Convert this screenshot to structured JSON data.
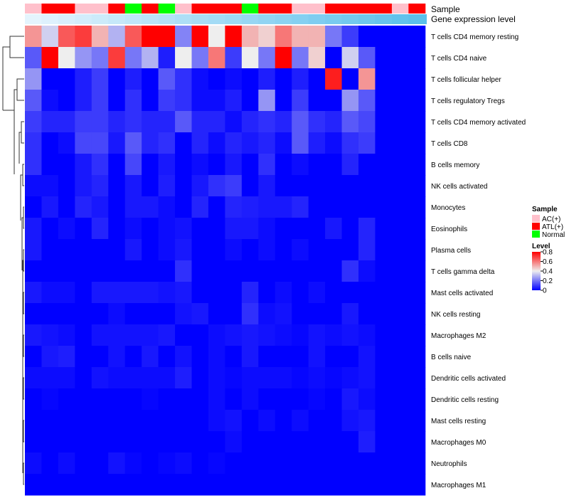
{
  "chart_data": {
    "type": "heatmap",
    "title": "",
    "annotation_tracks": [
      {
        "label": "Sample"
      },
      {
        "label": "Gene expression level"
      }
    ],
    "sample_groups": [
      "AC(+)",
      "ATL(+)",
      "ATL(+)",
      "AC(+)",
      "AC(+)",
      "ATL(+)",
      "Normal",
      "ATL(+)",
      "Normal",
      "AC(+)",
      "ATL(+)",
      "ATL(+)",
      "ATL(+)",
      "Normal",
      "ATL(+)",
      "ATL(+)",
      "AC(+)",
      "AC(+)",
      "ATL(+)",
      "ATL(+)",
      "ATL(+)",
      "ATL(+)",
      "AC(+)",
      "ATL(+)"
    ],
    "expression_levels": [
      0.08,
      0.12,
      0.16,
      0.2,
      0.24,
      0.28,
      0.32,
      0.36,
      0.4,
      0.44,
      0.48,
      0.52,
      0.56,
      0.6,
      0.64,
      0.68,
      0.72,
      0.76,
      0.8,
      0.84,
      0.88,
      0.92,
      0.96,
      1.0
    ],
    "rows": [
      "T cells CD4 memory resting",
      "T cells CD4 naive",
      "T cells follicular helper",
      "T cells regulatory  Tregs",
      "T cells CD4 memory activated",
      "T cells CD8",
      "B cells memory",
      "NK cells activated",
      "Monocytes",
      "Eosinophils",
      "Plasma cells",
      "T cells gamma delta",
      "Mast cells activated",
      "NK cells resting",
      "Macrophages M2",
      "B cells naive",
      "Dendritic cells activated",
      "Dendritic cells resting",
      "Mast cells resting",
      "Macrophages M0",
      "Neutrophils",
      "Macrophages M1"
    ],
    "values": [
      [
        0.55,
        0.35,
        0.65,
        0.7,
        0.5,
        0.3,
        0.65,
        0.8,
        0.8,
        0.22,
        0.8,
        0.4,
        0.8,
        0.5,
        0.45,
        0.6,
        0.5,
        0.5,
        0.2,
        0.1,
        0.0,
        0.0,
        0.0,
        0.0
      ],
      [
        0.15,
        0.8,
        0.4,
        0.25,
        0.2,
        0.7,
        0.2,
        0.3,
        0.05,
        0.4,
        0.2,
        0.6,
        0.1,
        0.4,
        0.2,
        0.8,
        0.2,
        0.45,
        0.0,
        0.35,
        0.15,
        0.0,
        0.0,
        0.0
      ],
      [
        0.25,
        0.0,
        0.0,
        0.05,
        0.1,
        0.0,
        0.05,
        0.0,
        0.15,
        0.08,
        0.02,
        0.0,
        0.02,
        0.0,
        0.05,
        0.0,
        0.05,
        0.0,
        0.75,
        0.0,
        0.55,
        0.0,
        0.0,
        0.0
      ],
      [
        0.15,
        0.02,
        0.0,
        0.05,
        0.1,
        0.0,
        0.08,
        0.0,
        0.1,
        0.08,
        0.02,
        0.02,
        0.05,
        0.0,
        0.25,
        0.0,
        0.1,
        0.0,
        0.0,
        0.25,
        0.15,
        0.0,
        0.0,
        0.0
      ],
      [
        0.1,
        0.06,
        0.06,
        0.1,
        0.1,
        0.06,
        0.08,
        0.06,
        0.06,
        0.15,
        0.06,
        0.06,
        0.02,
        0.06,
        0.08,
        0.06,
        0.15,
        0.08,
        0.06,
        0.15,
        0.12,
        0.0,
        0.0,
        0.0
      ],
      [
        0.08,
        0.0,
        0.02,
        0.12,
        0.12,
        0.04,
        0.15,
        0.06,
        0.08,
        0.0,
        0.06,
        0.02,
        0.06,
        0.04,
        0.06,
        0.02,
        0.15,
        0.05,
        0.02,
        0.08,
        0.1,
        0.0,
        0.0,
        0.0
      ],
      [
        0.08,
        0.0,
        0.0,
        0.04,
        0.08,
        0.0,
        0.12,
        0.0,
        0.04,
        0.0,
        0.02,
        0.0,
        0.04,
        0.0,
        0.08,
        0.0,
        0.02,
        0.0,
        0.0,
        0.06,
        0.0,
        0.0,
        0.0,
        0.0
      ],
      [
        0.02,
        0.02,
        0.0,
        0.04,
        0.06,
        0.0,
        0.04,
        0.0,
        0.05,
        0.0,
        0.04,
        0.08,
        0.1,
        0.0,
        0.04,
        0.0,
        0.0,
        0.0,
        0.0,
        0.0,
        0.0,
        0.0,
        0.0,
        0.0
      ],
      [
        0.0,
        0.04,
        0.0,
        0.06,
        0.04,
        0.0,
        0.04,
        0.04,
        0.02,
        0.0,
        0.06,
        0.0,
        0.06,
        0.05,
        0.04,
        0.04,
        0.06,
        0.0,
        0.0,
        0.0,
        0.0,
        0.0,
        0.0,
        0.0
      ],
      [
        0.04,
        0.0,
        0.02,
        0.0,
        0.06,
        0.0,
        0.02,
        0.0,
        0.02,
        0.03,
        0.0,
        0.0,
        0.04,
        0.04,
        0.02,
        0.0,
        0.0,
        0.0,
        0.04,
        0.0,
        0.06,
        0.0,
        0.0,
        0.0
      ],
      [
        0.04,
        0.0,
        0.0,
        0.0,
        0.0,
        0.0,
        0.04,
        0.0,
        0.02,
        0.04,
        0.0,
        0.0,
        0.02,
        0.0,
        0.02,
        0.0,
        0.02,
        0.0,
        0.0,
        0.0,
        0.06,
        0.0,
        0.0,
        0.0
      ],
      [
        0.0,
        0.0,
        0.0,
        0.0,
        0.0,
        0.0,
        0.0,
        0.0,
        0.0,
        0.08,
        0.0,
        0.0,
        0.0,
        0.0,
        0.0,
        0.0,
        0.0,
        0.0,
        0.0,
        0.08,
        0.02,
        0.0,
        0.0,
        0.0
      ],
      [
        0.04,
        0.02,
        0.02,
        0.0,
        0.04,
        0.04,
        0.04,
        0.04,
        0.03,
        0.04,
        0.0,
        0.0,
        0.0,
        0.06,
        0.0,
        0.02,
        0.0,
        0.02,
        0.0,
        0.0,
        0.0,
        0.0,
        0.0,
        0.0
      ],
      [
        0.0,
        0.0,
        0.0,
        0.0,
        0.0,
        0.02,
        0.0,
        0.0,
        0.0,
        0.03,
        0.04,
        0.0,
        0.0,
        0.08,
        0.02,
        0.03,
        0.0,
        0.0,
        0.0,
        0.04,
        0.0,
        0.0,
        0.0,
        0.0
      ],
      [
        0.04,
        0.03,
        0.02,
        0.0,
        0.03,
        0.03,
        0.03,
        0.03,
        0.04,
        0.0,
        0.0,
        0.02,
        0.03,
        0.04,
        0.03,
        0.02,
        0.01,
        0.03,
        0.02,
        0.03,
        0.02,
        0.0,
        0.0,
        0.0
      ],
      [
        0.0,
        0.04,
        0.05,
        0.0,
        0.0,
        0.03,
        0.0,
        0.04,
        0.0,
        0.03,
        0.0,
        0.02,
        0.0,
        0.04,
        0.0,
        0.0,
        0.0,
        0.03,
        0.0,
        0.0,
        0.03,
        0.0,
        0.0,
        0.0
      ],
      [
        0.02,
        0.02,
        0.02,
        0.0,
        0.03,
        0.02,
        0.02,
        0.02,
        0.02,
        0.05,
        0.0,
        0.02,
        0.01,
        0.02,
        0.02,
        0.02,
        0.01,
        0.02,
        0.01,
        0.02,
        0.03,
        0.0,
        0.0,
        0.0
      ],
      [
        0.0,
        0.01,
        0.0,
        0.0,
        0.0,
        0.0,
        0.0,
        0.01,
        0.0,
        0.0,
        0.0,
        0.02,
        0.0,
        0.02,
        0.0,
        0.0,
        0.0,
        0.01,
        0.0,
        0.04,
        0.02,
        0.0,
        0.0,
        0.0
      ],
      [
        0.0,
        0.0,
        0.0,
        0.0,
        0.0,
        0.0,
        0.0,
        0.0,
        0.0,
        0.0,
        0.0,
        0.02,
        0.03,
        0.0,
        0.02,
        0.0,
        0.02,
        0.0,
        0.0,
        0.03,
        0.04,
        0.0,
        0.0,
        0.0
      ],
      [
        0.0,
        0.0,
        0.0,
        0.0,
        0.0,
        0.0,
        0.0,
        0.0,
        0.0,
        0.0,
        0.0,
        0.0,
        0.02,
        0.0,
        0.0,
        0.0,
        0.0,
        0.0,
        0.0,
        0.0,
        0.05,
        0.0,
        0.0,
        0.0
      ],
      [
        0.02,
        0.0,
        0.02,
        0.0,
        0.0,
        0.03,
        0.01,
        0.0,
        0.01,
        0.02,
        0.0,
        0.01,
        0.0,
        0.0,
        0.0,
        0.0,
        0.0,
        0.0,
        0.0,
        0.0,
        0.0,
        0.0,
        0.0,
        0.0
      ],
      [
        0.0,
        0.0,
        0.0,
        0.0,
        0.0,
        0.0,
        0.0,
        0.0,
        0.0,
        0.0,
        0.0,
        0.0,
        0.0,
        0.0,
        0.0,
        0.0,
        0.0,
        0.0,
        0.0,
        0.0,
        0.0,
        0.0,
        0.0,
        0.0
      ]
    ],
    "color_scale": {
      "min": 0,
      "max": 0.8,
      "low": "#0000ff",
      "mid": "#eeeeee",
      "high": "#ff0000",
      "midpoint": 0.4
    },
    "legend": {
      "sample_title": "Sample",
      "sample_entries": [
        {
          "label": "AC(+)",
          "color": "#ffc0cb"
        },
        {
          "label": "ATL(+)",
          "color": "#ff0000"
        },
        {
          "label": "Normal",
          "color": "#00ff00"
        }
      ],
      "level_title": "Level",
      "level_ticks": [
        "0.8",
        "0.6",
        "0.4",
        "0.2",
        "0"
      ],
      "level_tick_values": [
        0.8,
        0.6,
        0.4,
        0.2,
        0
      ]
    },
    "sample_colors": {
      "AC(+)": "#ffc0cb",
      "ATL(+)": "#ff0000",
      "Normal": "#00ff00"
    },
    "expression_colors": {
      "low": "#f0f8ff",
      "high": "#5bc0eb"
    },
    "dendrogram": "hierarchical clustering of rows (cell types)"
  }
}
